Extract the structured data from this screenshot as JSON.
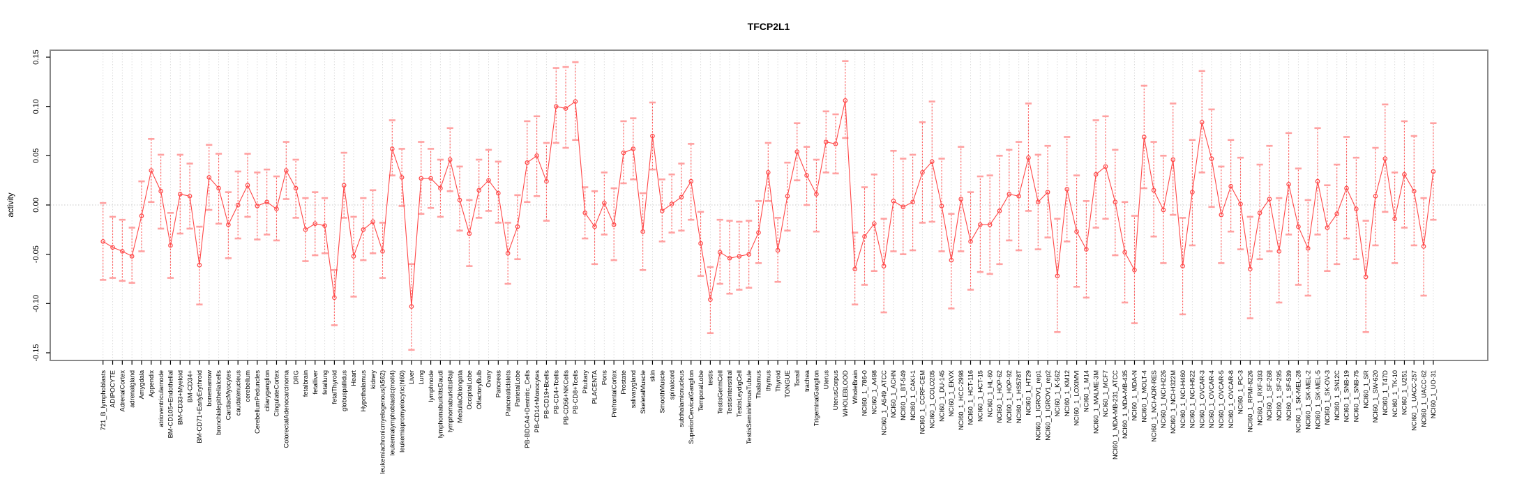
{
  "chart_data": {
    "type": "line",
    "subtype": "points-with-error-bars",
    "title": "TFCP2L1",
    "xlabel": "",
    "ylabel": "activity",
    "ylim": [
      -0.15,
      0.15
    ],
    "yticks": [
      0.15,
      0.1,
      0.05,
      0.0,
      -0.05,
      -0.1,
      -0.15
    ],
    "grid": "vertical-dotted-per-category-plus-zero-line",
    "legend": "none",
    "colors": {
      "point_and_line": "#ff4747",
      "error_bar_line": "#ff5c5c",
      "error_bar_cap": "#ffa1a1",
      "gridline": "#dcdcdc",
      "zero_line": "#c8c8c8",
      "box_border": "#888888",
      "background": "#ffffff",
      "text": "#000000"
    },
    "categories": [
      "721_B_lymphoblasts",
      "ADIPOCYTE",
      "AdrenalCortex",
      "adrenalgland",
      "Amygdala",
      "Appendix",
      "atrioventricularnode",
      "BM-CD105+Endothelial",
      "BM-CD33+Myeloid",
      "BM-CD34+",
      "BM-CD71+EarlyErythroid",
      "bonemarrow",
      "bronchialepithelialcells",
      "CardiacMyocytes",
      "caudatenucleus",
      "cerebellum",
      "CerebellumPeduncles",
      "ciliaryganglion",
      "CingulateCortex",
      "ColorectalAdenocarcinoma",
      "DRG",
      "fetalbrain",
      "fetalliver",
      "fetallung",
      "fetalThyroid",
      "globuspallidus",
      "Heart",
      "Hypothalamus",
      "kidney",
      "leukemiachronicmyelogenous(k562)",
      "leukemialymphoblastic(molt4)",
      "leukemiapromyelocytic(hl60)",
      "Liver",
      "Lung",
      "lymphnode",
      "lymphomaburkittsDaudi",
      "lymphomaburkittsRaji",
      "MedullaOblongata",
      "OccipitalLobe",
      "OlfactoryBulb",
      "Ovary",
      "Pancreas",
      "PancreaticIslets",
      "ParietalLobe",
      "PB-BDCA4+Dentritic_Cells",
      "PB-CD14+Monocytes",
      "PB-CD19+Bcells",
      "PB-CD4+Tcells",
      "PB-CD56+NKCells",
      "PB-CD8+Tcells",
      "Pituitary",
      "PLACENTA",
      "Pons",
      "PrefrontalCortex",
      "Prostate",
      "salivarygland",
      "SkeletalMuscle",
      "skin",
      "SmoothMuscle",
      "spinalcord",
      "subthalamicnucleus",
      "SuperiorCervicalGanglion",
      "TemporalLobe",
      "testis",
      "TestisGermCell",
      "TestisInterstitial",
      "TestisLeydigCell",
      "TestisSeminiferousTubule",
      "Thalamus",
      "thymus",
      "Thyroid",
      "TONGUE",
      "Tonsil",
      "trachea",
      "TrigeminalGanglion",
      "Uterus",
      "UterusCorpus",
      "WHOLEBLOOD",
      "WholeBrain",
      "NCI60_1_786-0",
      "NCI60_1_A498",
      "NCI60_1_A549_ATCC",
      "NCI60_1_ACHN",
      "NCI60_1_BT-549",
      "NCI60_1_CAKI-1",
      "NCI60_1_CCRF-CEM",
      "NCI60_1_COLO205",
      "NCI60_1_DU-145",
      "NCI60_1_EKVX",
      "NCI60_1_HCC-2998",
      "NCI60_1_HCT-116",
      "NCI60_1_HCT-15",
      "NCI60_1_HL-60",
      "NCI60_1_HOP-62",
      "NCI60_1_HOP-92",
      "NCI60_1_HS578T",
      "NCI60_1_HT29",
      "NCI60_1_IGROV1_rep1",
      "NCI60_1_IGROV1_rep2",
      "NCI60_1_K-562",
      "NCI60_1_KM12",
      "NCI60_1_LOXIMVI",
      "NCI60_1_M14",
      "NCI60_1_MALME-3M",
      "NCI60_1_MCF7",
      "NCI60_1_MDA-MB-231_ATCC",
      "NCI60_1_MDA-MB-435",
      "NCI60_1_MDA-N",
      "NCI60_1_MOLT-4",
      "NCI60_1_NCI-ADR-RES",
      "NCI60_1_NCI-H226",
      "NCI60_1_NCI-H322M",
      "NCI60_1_NCI-H460",
      "NCI60_1_NCI-H522",
      "NCI60_1_OVCAR-3",
      "NCI60_1_OVCAR-4",
      "NCI60_1_OVCAR-5",
      "NCI60_1_OVCAR-8",
      "NCI60_1_PC-3",
      "NCI60_1_RPMI-8226",
      "NCI60_1_RXF-393",
      "NCI60_1_SF-268",
      "NCI60_1_SF-295",
      "NCI60_1_SF-539",
      "NCI60_1_SK-MEL-28",
      "NCI60_1_SK-MEL-2",
      "NCI60_1_SK-MEL-5",
      "NCI60_1_SK-OV-3",
      "NCI60_1_SN12C",
      "NCI60_1_SNB-19",
      "NCI60_1_SNB-75",
      "NCI60_1_SR",
      "NCI60_1_SW-620",
      "NCI60_1_T47D",
      "NCI60_1_TK-10",
      "NCI60_1_U251",
      "NCI60_1_UACC-257",
      "NCI60_1_UACC-62",
      "NCI60_1_UO-31"
    ],
    "values": [
      -0.037,
      -0.043,
      -0.047,
      -0.052,
      -0.011,
      0.035,
      0.014,
      -0.041,
      0.011,
      0.009,
      -0.061,
      0.028,
      0.017,
      -0.02,
      0.0,
      0.02,
      -0.001,
      0.003,
      -0.004,
      0.035,
      0.017,
      -0.025,
      -0.019,
      -0.021,
      -0.094,
      0.02,
      -0.052,
      -0.025,
      -0.017,
      -0.047,
      0.057,
      0.028,
      -0.103,
      0.027,
      0.027,
      0.017,
      0.046,
      0.005,
      -0.029,
      0.015,
      0.025,
      0.012,
      -0.049,
      -0.022,
      0.043,
      0.05,
      0.024,
      0.1,
      0.098,
      0.105,
      -0.008,
      -0.022,
      0.002,
      -0.02,
      0.053,
      0.057,
      -0.027,
      0.07,
      -0.006,
      0.001,
      0.008,
      0.024,
      -0.039,
      -0.096,
      -0.048,
      -0.054,
      -0.052,
      -0.05,
      -0.028,
      0.033,
      -0.046,
      0.009,
      0.054,
      0.03,
      0.011,
      0.064,
      0.062,
      0.106,
      -0.065,
      -0.032,
      -0.019,
      -0.062,
      0.004,
      -0.002,
      0.003,
      0.033,
      0.044,
      -0.001,
      -0.056,
      0.006,
      -0.037,
      -0.02,
      -0.02,
      -0.006,
      0.011,
      0.009,
      0.048,
      0.003,
      0.013,
      -0.072,
      0.016,
      -0.027,
      -0.045,
      0.031,
      0.039,
      0.003,
      -0.048,
      -0.066,
      0.069,
      0.015,
      -0.005,
      0.046,
      -0.062,
      0.013,
      0.084,
      0.047,
      -0.01,
      0.019,
      0.001,
      -0.065,
      -0.008,
      0.006,
      -0.047,
      0.021,
      -0.022,
      -0.044,
      0.024,
      -0.023,
      -0.009,
      0.017,
      -0.004,
      -0.073,
      0.009,
      0.047,
      -0.014,
      0.031,
      0.014,
      -0.042,
      0.034
    ],
    "err_lo": [
      -0.076,
      -0.074,
      -0.077,
      -0.079,
      -0.047,
      0.003,
      -0.024,
      -0.074,
      -0.029,
      -0.024,
      -0.101,
      -0.005,
      -0.019,
      -0.054,
      -0.034,
      -0.012,
      -0.035,
      -0.03,
      -0.036,
      0.006,
      -0.013,
      -0.057,
      -0.051,
      -0.049,
      -0.122,
      -0.013,
      -0.093,
      -0.056,
      -0.049,
      -0.074,
      0.03,
      -0.001,
      -0.147,
      -0.009,
      -0.003,
      -0.012,
      0.014,
      -0.026,
      -0.062,
      -0.013,
      -0.006,
      -0.018,
      -0.08,
      -0.055,
      0.003,
      0.009,
      -0.016,
      0.063,
      0.058,
      0.066,
      -0.034,
      -0.06,
      -0.03,
      -0.056,
      0.022,
      0.026,
      -0.066,
      0.036,
      -0.037,
      -0.028,
      -0.026,
      -0.015,
      -0.072,
      -0.13,
      -0.08,
      -0.09,
      -0.086,
      -0.084,
      -0.059,
      0.004,
      -0.078,
      -0.026,
      0.025,
      0.0,
      -0.027,
      0.033,
      0.032,
      0.068,
      -0.101,
      -0.081,
      -0.067,
      -0.109,
      -0.047,
      -0.05,
      -0.046,
      -0.018,
      -0.017,
      -0.047,
      -0.105,
      -0.047,
      -0.086,
      -0.068,
      -0.07,
      -0.06,
      -0.036,
      -0.046,
      -0.006,
      -0.045,
      -0.033,
      -0.129,
      -0.037,
      -0.083,
      -0.094,
      -0.023,
      -0.014,
      -0.051,
      -0.099,
      -0.12,
      0.017,
      -0.032,
      -0.059,
      -0.01,
      -0.111,
      -0.041,
      0.033,
      -0.002,
      -0.059,
      -0.027,
      -0.045,
      -0.115,
      -0.055,
      -0.047,
      -0.099,
      -0.03,
      -0.081,
      -0.092,
      -0.03,
      -0.067,
      -0.06,
      -0.034,
      -0.055,
      -0.129,
      -0.041,
      -0.007,
      -0.059,
      -0.023,
      -0.041,
      -0.092,
      -0.015
    ],
    "err_hi": [
      0.002,
      -0.012,
      -0.015,
      -0.023,
      0.024,
      0.067,
      0.051,
      -0.008,
      0.051,
      0.042,
      -0.022,
      0.061,
      0.052,
      0.013,
      0.034,
      0.052,
      0.033,
      0.036,
      0.029,
      0.064,
      0.046,
      0.007,
      0.013,
      0.007,
      -0.066,
      0.053,
      -0.012,
      0.007,
      0.015,
      -0.018,
      0.086,
      0.057,
      -0.06,
      0.064,
      0.057,
      0.046,
      0.078,
      0.039,
      0.005,
      0.046,
      0.056,
      0.044,
      -0.018,
      0.01,
      0.085,
      0.09,
      0.063,
      0.139,
      0.14,
      0.145,
      0.018,
      0.014,
      0.033,
      0.017,
      0.085,
      0.088,
      0.012,
      0.104,
      0.026,
      0.031,
      0.042,
      0.062,
      -0.007,
      -0.063,
      -0.015,
      -0.016,
      -0.017,
      -0.016,
      0.004,
      0.063,
      -0.013,
      0.043,
      0.083,
      0.059,
      0.046,
      0.095,
      0.092,
      0.146,
      -0.028,
      0.018,
      0.031,
      -0.014,
      0.055,
      0.047,
      0.051,
      0.084,
      0.105,
      0.047,
      -0.009,
      0.059,
      0.013,
      0.029,
      0.03,
      0.05,
      0.056,
      0.064,
      0.103,
      0.051,
      0.06,
      -0.014,
      0.069,
      0.03,
      0.004,
      0.086,
      0.09,
      0.056,
      0.003,
      -0.011,
      0.121,
      0.064,
      0.05,
      0.103,
      -0.013,
      0.066,
      0.136,
      0.097,
      0.039,
      0.066,
      0.048,
      -0.012,
      0.041,
      0.06,
      0.007,
      0.073,
      0.037,
      0.005,
      0.078,
      0.02,
      0.041,
      0.069,
      0.048,
      -0.016,
      0.058,
      0.102,
      0.033,
      0.085,
      0.07,
      0.007,
      0.083
    ]
  }
}
